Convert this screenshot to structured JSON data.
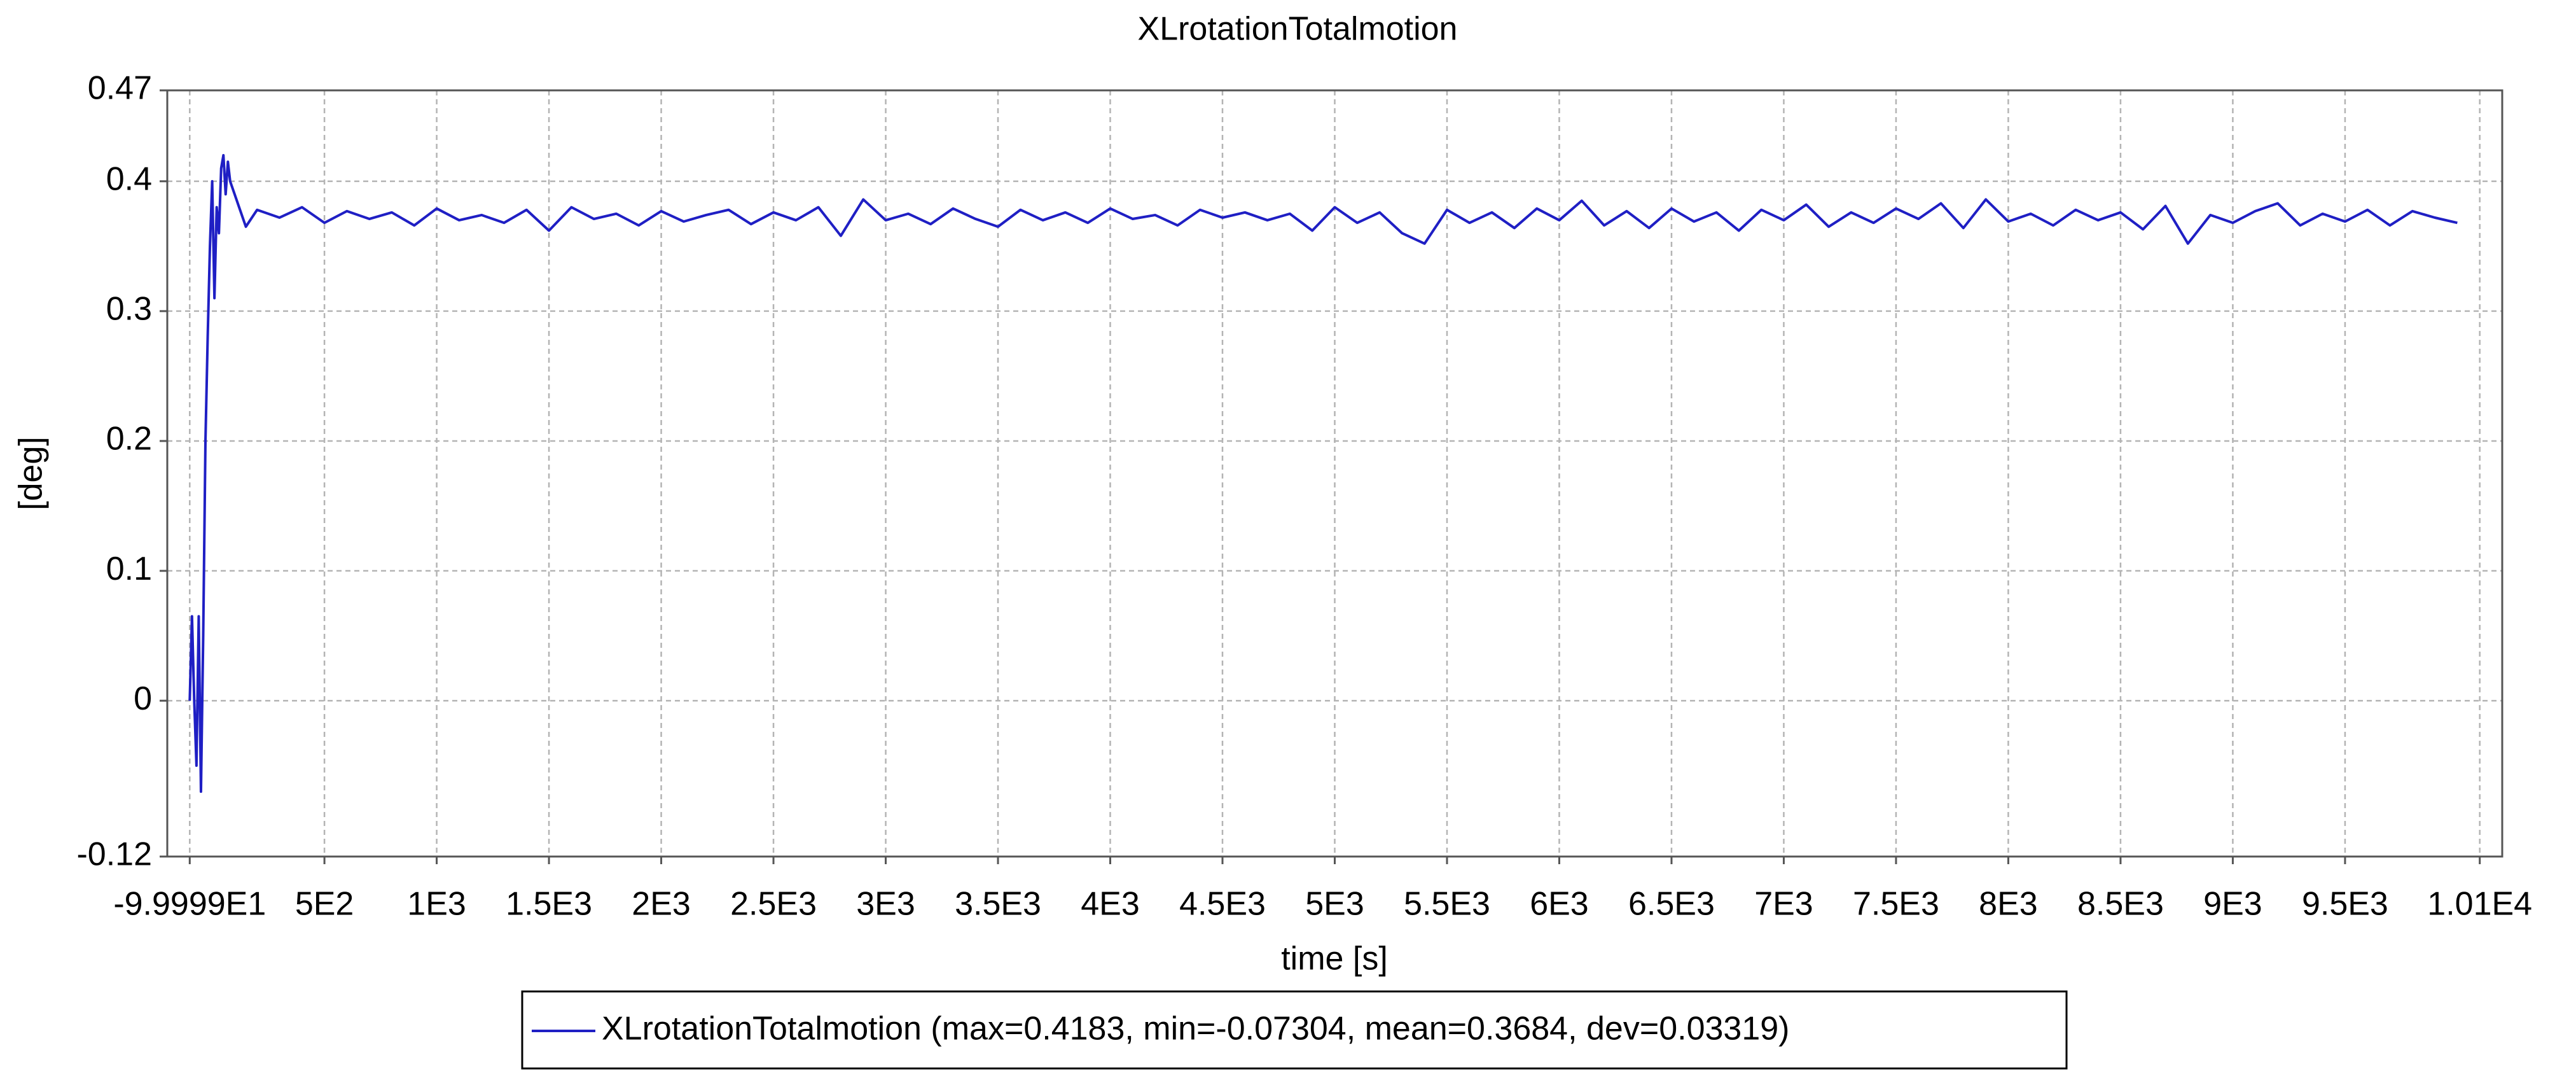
{
  "chart_data": {
    "type": "line",
    "title": "XLrotationTotalmotion",
    "x_label": "time [s]",
    "y_label": "[deg]",
    "xlim": [
      -200,
      10200
    ],
    "ylim": [
      -0.12,
      0.47
    ],
    "xticks": [
      {
        "value": -99.999,
        "label": "-9.9999E1"
      },
      {
        "value": 500,
        "label": "5E2"
      },
      {
        "value": 1000,
        "label": "1E3"
      },
      {
        "value": 1500,
        "label": "1.5E3"
      },
      {
        "value": 2000,
        "label": "2E3"
      },
      {
        "value": 2500,
        "label": "2.5E3"
      },
      {
        "value": 3000,
        "label": "3E3"
      },
      {
        "value": 3500,
        "label": "3.5E3"
      },
      {
        "value": 4000,
        "label": "4E3"
      },
      {
        "value": 4500,
        "label": "4.5E3"
      },
      {
        "value": 5000,
        "label": "5E3"
      },
      {
        "value": 5500,
        "label": "5.5E3"
      },
      {
        "value": 6000,
        "label": "6E3"
      },
      {
        "value": 6500,
        "label": "6.5E3"
      },
      {
        "value": 7000,
        "label": "7E3"
      },
      {
        "value": 7500,
        "label": "7.5E3"
      },
      {
        "value": 8000,
        "label": "8E3"
      },
      {
        "value": 8500,
        "label": "8.5E3"
      },
      {
        "value": 9000,
        "label": "9E3"
      },
      {
        "value": 9500,
        "label": "9.5E3"
      },
      {
        "value": 10100,
        "label": "1.01E4"
      }
    ],
    "yticks": [
      -0.12,
      0,
      0.1,
      0.2,
      0.3,
      0.4,
      0.47
    ],
    "grid": true,
    "x": [
      -100,
      -90,
      -80,
      -70,
      -60,
      -50,
      -40,
      -30,
      -20,
      -10,
      0,
      10,
      20,
      30,
      40,
      50,
      60,
      70,
      80,
      100,
      120,
      150,
      200,
      300,
      400,
      500,
      600,
      700,
      800,
      900,
      1000,
      1100,
      1200,
      1300,
      1400,
      1500,
      1600,
      1700,
      1800,
      1900,
      2000,
      2100,
      2200,
      2300,
      2400,
      2500,
      2600,
      2700,
      2800,
      2900,
      3000,
      3100,
      3200,
      3300,
      3400,
      3500,
      3600,
      3700,
      3800,
      3900,
      4000,
      4100,
      4200,
      4300,
      4400,
      4500,
      4600,
      4700,
      4800,
      4900,
      5000,
      5100,
      5200,
      5300,
      5400,
      5500,
      5600,
      5700,
      5800,
      5900,
      6000,
      6100,
      6200,
      6300,
      6400,
      6500,
      6600,
      6700,
      6800,
      6900,
      7000,
      7100,
      7200,
      7300,
      7400,
      7500,
      7600,
      7700,
      7800,
      7900,
      8000,
      8100,
      8200,
      8300,
      8400,
      8500,
      8600,
      8700,
      8800,
      8900,
      9000,
      9100,
      9200,
      9300,
      9400,
      9500,
      9600,
      9700,
      9800,
      9900,
      10000
    ],
    "series": [
      {
        "name": "XLrotationTotalmotion (max=0.4183, min=-0.07304, mean=0.3684, dev=0.03319)",
        "color": "#1f1fc4",
        "values": [
          0.0,
          0.065,
          0.0,
          -0.05,
          0.065,
          -0.07,
          0.05,
          0.2,
          0.28,
          0.35,
          0.4,
          0.31,
          0.38,
          0.36,
          0.41,
          0.42,
          0.39,
          0.415,
          0.4,
          0.39,
          0.38,
          0.365,
          0.378,
          0.372,
          0.38,
          0.368,
          0.377,
          0.371,
          0.376,
          0.366,
          0.379,
          0.37,
          0.374,
          0.368,
          0.378,
          0.362,
          0.38,
          0.371,
          0.375,
          0.366,
          0.377,
          0.369,
          0.374,
          0.378,
          0.367,
          0.376,
          0.37,
          0.38,
          0.358,
          0.386,
          0.37,
          0.375,
          0.367,
          0.379,
          0.371,
          0.365,
          0.378,
          0.37,
          0.376,
          0.368,
          0.379,
          0.371,
          0.374,
          0.366,
          0.378,
          0.372,
          0.376,
          0.37,
          0.375,
          0.362,
          0.38,
          0.368,
          0.376,
          0.36,
          0.352,
          0.378,
          0.368,
          0.376,
          0.364,
          0.379,
          0.37,
          0.385,
          0.366,
          0.377,
          0.364,
          0.379,
          0.369,
          0.376,
          0.362,
          0.378,
          0.37,
          0.382,
          0.365,
          0.376,
          0.368,
          0.379,
          0.371,
          0.383,
          0.364,
          0.386,
          0.369,
          0.375,
          0.366,
          0.378,
          0.37,
          0.376,
          0.363,
          0.381,
          0.352,
          0.374,
          0.368,
          0.377,
          0.383,
          0.366,
          0.375,
          0.369,
          0.378,
          0.366,
          0.377,
          0.372,
          0.368
        ]
      }
    ]
  }
}
